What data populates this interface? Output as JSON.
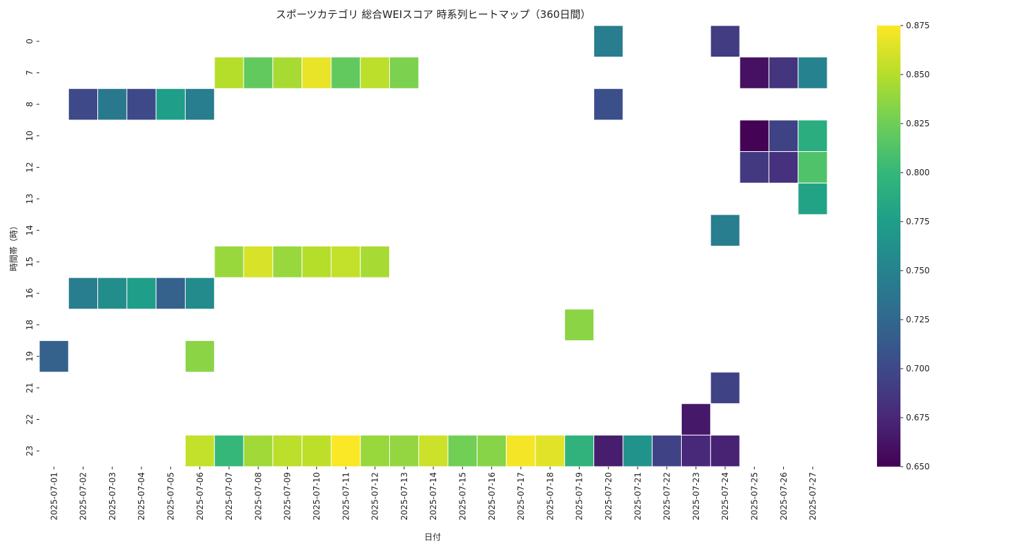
{
  "chart_data": {
    "type": "heatmap",
    "title": "スポーツカテゴリ 総合WEIスコア 時系列ヒートマップ（360日間）",
    "xlabel": "日付",
    "ylabel": "時間帯（時）",
    "x": [
      "2025-07-01",
      "2025-07-02",
      "2025-07-03",
      "2025-07-04",
      "2025-07-05",
      "2025-07-06",
      "2025-07-07",
      "2025-07-08",
      "2025-07-09",
      "2025-07-10",
      "2025-07-11",
      "2025-07-12",
      "2025-07-13",
      "2025-07-14",
      "2025-07-15",
      "2025-07-16",
      "2025-07-17",
      "2025-07-18",
      "2025-07-19",
      "2025-07-20",
      "2025-07-21",
      "2025-07-22",
      "2025-07-23",
      "2025-07-24",
      "2025-07-25",
      "2025-07-26",
      "2025-07-27"
    ],
    "y": [
      "0",
      "7",
      "8",
      "10",
      "12",
      "13",
      "14",
      "15",
      "16",
      "18",
      "19",
      "21",
      "22",
      "23"
    ],
    "colormap": "viridis",
    "vmin": 0.65,
    "vmax": 0.875,
    "colorbar_ticks": [
      "0.650",
      "0.675",
      "0.700",
      "0.725",
      "0.750",
      "0.775",
      "0.800",
      "0.825",
      "0.850",
      "0.875"
    ],
    "cells": [
      {
        "hour": "0",
        "date": "2025-07-20",
        "value": 0.745
      },
      {
        "hour": "0",
        "date": "2025-07-24",
        "value": 0.69
      },
      {
        "hour": "7",
        "date": "2025-07-07",
        "value": 0.85
      },
      {
        "hour": "7",
        "date": "2025-07-08",
        "value": 0.82
      },
      {
        "hour": "7",
        "date": "2025-07-09",
        "value": 0.845
      },
      {
        "hour": "7",
        "date": "2025-07-10",
        "value": 0.868
      },
      {
        "hour": "7",
        "date": "2025-07-11",
        "value": 0.82
      },
      {
        "hour": "7",
        "date": "2025-07-12",
        "value": 0.852
      },
      {
        "hour": "7",
        "date": "2025-07-13",
        "value": 0.83
      },
      {
        "hour": "7",
        "date": "2025-07-25",
        "value": 0.66
      },
      {
        "hour": "7",
        "date": "2025-07-26",
        "value": 0.685
      },
      {
        "hour": "7",
        "date": "2025-07-27",
        "value": 0.75
      },
      {
        "hour": "8",
        "date": "2025-07-02",
        "value": 0.7
      },
      {
        "hour": "8",
        "date": "2025-07-03",
        "value": 0.74
      },
      {
        "hour": "8",
        "date": "2025-07-04",
        "value": 0.7
      },
      {
        "hour": "8",
        "date": "2025-07-05",
        "value": 0.775
      },
      {
        "hour": "8",
        "date": "2025-07-06",
        "value": 0.745
      },
      {
        "hour": "8",
        "date": "2025-07-20",
        "value": 0.705
      },
      {
        "hour": "10",
        "date": "2025-07-25",
        "value": 0.651
      },
      {
        "hour": "10",
        "date": "2025-07-26",
        "value": 0.695
      },
      {
        "hour": "10",
        "date": "2025-07-27",
        "value": 0.79
      },
      {
        "hour": "12",
        "date": "2025-07-25",
        "value": 0.688
      },
      {
        "hour": "12",
        "date": "2025-07-26",
        "value": 0.682
      },
      {
        "hour": "12",
        "date": "2025-07-27",
        "value": 0.812
      },
      {
        "hour": "13",
        "date": "2025-07-27",
        "value": 0.78
      },
      {
        "hour": "14",
        "date": "2025-07-24",
        "value": 0.745
      },
      {
        "hour": "15",
        "date": "2025-07-07",
        "value": 0.84
      },
      {
        "hour": "15",
        "date": "2025-07-08",
        "value": 0.862
      },
      {
        "hour": "15",
        "date": "2025-07-09",
        "value": 0.84
      },
      {
        "hour": "15",
        "date": "2025-07-10",
        "value": 0.85
      },
      {
        "hour": "15",
        "date": "2025-07-11",
        "value": 0.855
      },
      {
        "hour": "15",
        "date": "2025-07-12",
        "value": 0.845
      },
      {
        "hour": "16",
        "date": "2025-07-02",
        "value": 0.745
      },
      {
        "hour": "16",
        "date": "2025-07-03",
        "value": 0.76
      },
      {
        "hour": "16",
        "date": "2025-07-04",
        "value": 0.775
      },
      {
        "hour": "16",
        "date": "2025-07-05",
        "value": 0.72
      },
      {
        "hour": "16",
        "date": "2025-07-06",
        "value": 0.758
      },
      {
        "hour": "18",
        "date": "2025-07-19",
        "value": 0.835
      },
      {
        "hour": "19",
        "date": "2025-07-01",
        "value": 0.72
      },
      {
        "hour": "19",
        "date": "2025-07-06",
        "value": 0.835
      },
      {
        "hour": "21",
        "date": "2025-07-24",
        "value": 0.695
      },
      {
        "hour": "22",
        "date": "2025-07-23",
        "value": 0.665
      },
      {
        "hour": "23",
        "date": "2025-07-06",
        "value": 0.855
      },
      {
        "hour": "23",
        "date": "2025-07-07",
        "value": 0.8
      },
      {
        "hour": "23",
        "date": "2025-07-08",
        "value": 0.843
      },
      {
        "hour": "23",
        "date": "2025-07-09",
        "value": 0.852
      },
      {
        "hour": "23",
        "date": "2025-07-10",
        "value": 0.853
      },
      {
        "hour": "23",
        "date": "2025-07-11",
        "value": 0.874
      },
      {
        "hour": "23",
        "date": "2025-07-12",
        "value": 0.84
      },
      {
        "hour": "23",
        "date": "2025-07-13",
        "value": 0.838
      },
      {
        "hour": "23",
        "date": "2025-07-14",
        "value": 0.858
      },
      {
        "hour": "23",
        "date": "2025-07-15",
        "value": 0.826
      },
      {
        "hour": "23",
        "date": "2025-07-16",
        "value": 0.834
      },
      {
        "hour": "23",
        "date": "2025-07-17",
        "value": 0.872
      },
      {
        "hour": "23",
        "date": "2025-07-18",
        "value": 0.865
      },
      {
        "hour": "23",
        "date": "2025-07-19",
        "value": 0.795
      },
      {
        "hour": "23",
        "date": "2025-07-20",
        "value": 0.668
      },
      {
        "hour": "23",
        "date": "2025-07-21",
        "value": 0.765
      },
      {
        "hour": "23",
        "date": "2025-07-22",
        "value": 0.695
      },
      {
        "hour": "23",
        "date": "2025-07-23",
        "value": 0.675
      },
      {
        "hour": "23",
        "date": "2025-07-24",
        "value": 0.672
      }
    ]
  }
}
